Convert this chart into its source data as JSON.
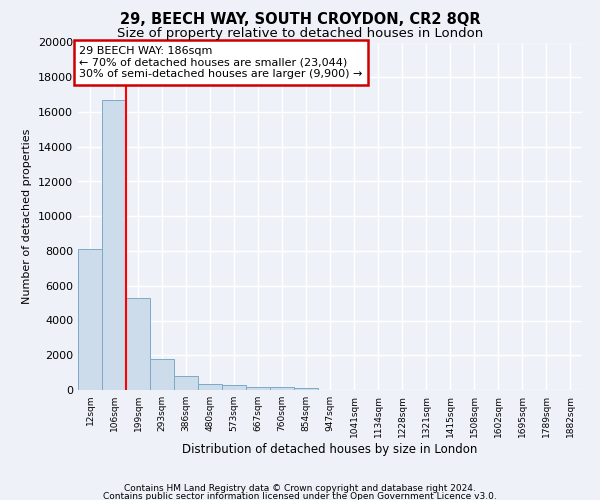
{
  "title": "29, BEECH WAY, SOUTH CROYDON, CR2 8QR",
  "subtitle": "Size of property relative to detached houses in London",
  "xlabel": "Distribution of detached houses by size in London",
  "ylabel": "Number of detached properties",
  "footnote1": "Contains HM Land Registry data © Crown copyright and database right 2024.",
  "footnote2": "Contains public sector information licensed under the Open Government Licence v3.0.",
  "annotation_line1": "29 BEECH WAY: 186sqm",
  "annotation_line2": "← 70% of detached houses are smaller (23,044)",
  "annotation_line3": "30% of semi-detached houses are larger (9,900) →",
  "bar_labels": [
    "12sqm",
    "106sqm",
    "199sqm",
    "293sqm",
    "386sqm",
    "480sqm",
    "573sqm",
    "667sqm",
    "760sqm",
    "854sqm",
    "947sqm",
    "1041sqm",
    "1134sqm",
    "1228sqm",
    "1321sqm",
    "1415sqm",
    "1508sqm",
    "1602sqm",
    "1695sqm",
    "1789sqm",
    "1882sqm"
  ],
  "bar_values": [
    8100,
    16700,
    5300,
    1800,
    800,
    350,
    300,
    200,
    200,
    100,
    0,
    0,
    0,
    0,
    0,
    0,
    0,
    0,
    0,
    0,
    0
  ],
  "bar_color": "#ccdcea",
  "bar_edgecolor": "#7aaac8",
  "redline_x": 1.5,
  "ylim": [
    0,
    20000
  ],
  "yticks": [
    0,
    2000,
    4000,
    6000,
    8000,
    10000,
    12000,
    14000,
    16000,
    18000,
    20000
  ],
  "bg_color": "#eef2f8",
  "grid_color": "#ffffff",
  "title_fontsize": 10.5,
  "subtitle_fontsize": 9.5,
  "annotation_box_facecolor": "#ffffff",
  "annotation_box_edgecolor": "#cc0000",
  "footnote_fontsize": 6.5
}
